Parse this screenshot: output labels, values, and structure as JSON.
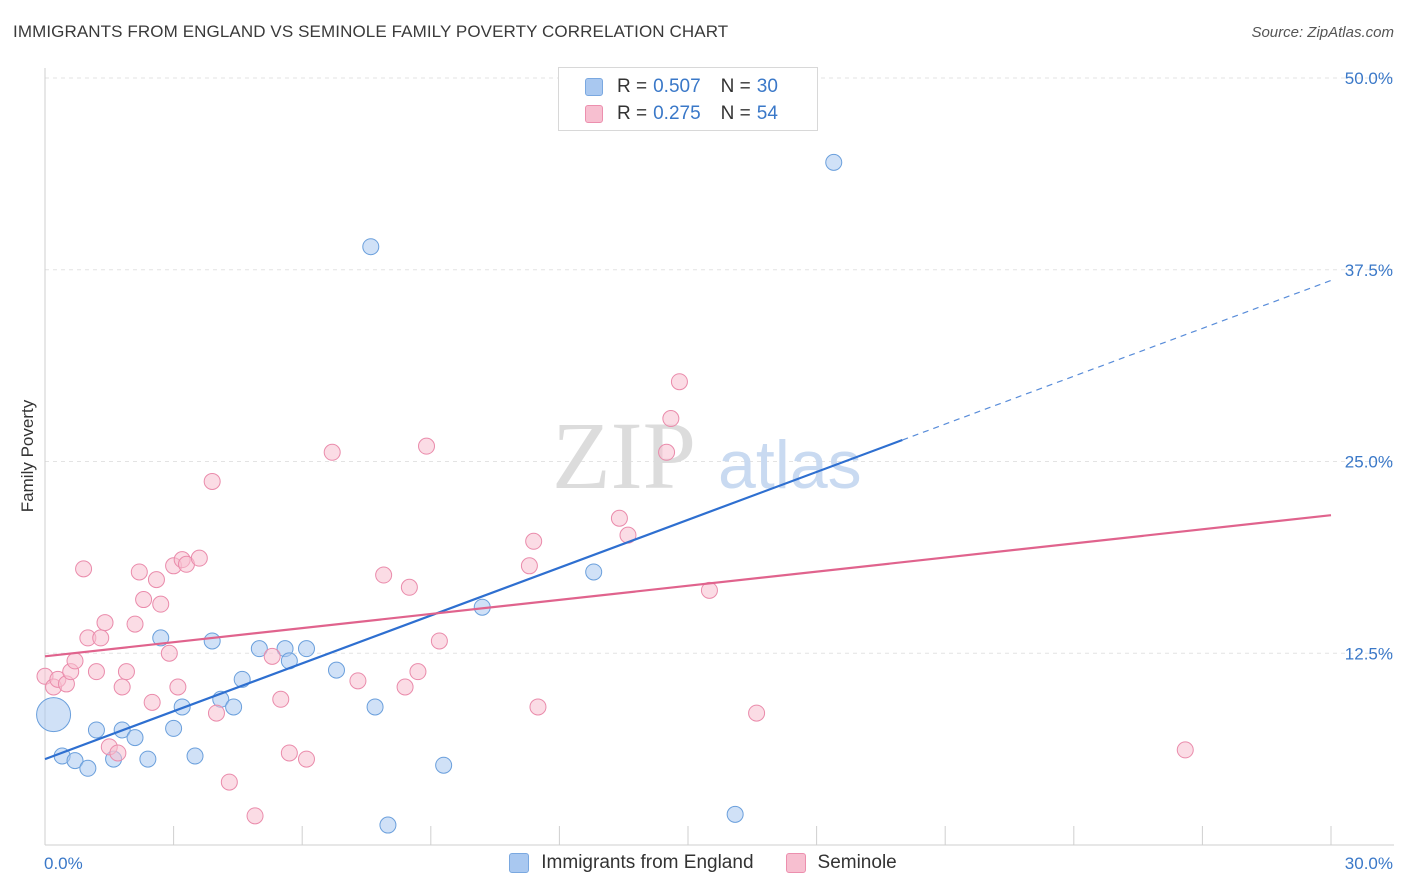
{
  "title": "IMMIGRANTS FROM ENGLAND VS SEMINOLE FAMILY POVERTY CORRELATION CHART",
  "source": "Source: ZipAtlas.com",
  "watermark": {
    "zip": "ZIP",
    "atlas": "atlas"
  },
  "legend": {
    "rows": [
      {
        "r_label": "R =",
        "r_value": "0.507",
        "n_label": "N =",
        "n_value": "30",
        "color": "#a9c8f0",
        "stroke": "#7aa8e0"
      },
      {
        "r_label": "R =",
        "r_value": "0.275",
        "n_label": "N =",
        "n_value": "54",
        "color": "#f7bfd0",
        "stroke": "#ec8fae"
      }
    ]
  },
  "bottom_legend": [
    "Immigrants from England",
    "Seminole"
  ],
  "chart_data": {
    "type": "scatter",
    "title": "IMMIGRANTS FROM ENGLAND VS SEMINOLE FAMILY POVERTY CORRELATION CHART",
    "xlabel": "",
    "ylabel": "Family Poverty",
    "xlim": [
      0,
      30
    ],
    "ylim": [
      0,
      50
    ],
    "x_tick_labels": [
      "0.0%",
      "30.0%"
    ],
    "y_ticks": [
      12.5,
      25.0,
      37.5,
      50.0
    ],
    "y_tick_labels": [
      "12.5%",
      "25.0%",
      "37.5%",
      "50.0%"
    ],
    "grid": true,
    "legend_position": "top-center",
    "series": [
      {
        "name": "Immigrants from England",
        "color": "#a9c8f0",
        "stroke": "#6a9fdc",
        "line_color": "#2e6fd0",
        "points": [
          [
            0.2,
            8.5,
            "large"
          ],
          [
            0.4,
            5.8
          ],
          [
            0.7,
            5.5
          ],
          [
            1.0,
            5.0
          ],
          [
            1.2,
            7.5
          ],
          [
            1.6,
            5.6
          ],
          [
            1.8,
            7.5
          ],
          [
            2.1,
            7.0
          ],
          [
            2.4,
            5.6
          ],
          [
            2.7,
            13.5
          ],
          [
            3.0,
            7.6
          ],
          [
            3.2,
            9.0
          ],
          [
            3.5,
            5.8
          ],
          [
            3.9,
            13.3
          ],
          [
            4.1,
            9.5
          ],
          [
            4.4,
            9.0
          ],
          [
            4.6,
            10.8
          ],
          [
            5.0,
            12.8
          ],
          [
            5.6,
            12.8
          ],
          [
            5.7,
            12.0
          ],
          [
            6.1,
            12.8
          ],
          [
            6.8,
            11.4
          ],
          [
            7.6,
            39.0
          ],
          [
            7.7,
            9.0
          ],
          [
            8.0,
            1.3
          ],
          [
            9.3,
            5.2
          ],
          [
            10.2,
            15.5
          ],
          [
            12.8,
            17.8
          ],
          [
            16.1,
            2.0
          ],
          [
            18.4,
            44.5
          ]
        ],
        "trend": {
          "x_start": 0,
          "y_start": 5.6,
          "x_solid_end": 20.0,
          "y_solid_end": 26.4,
          "x_end": 30,
          "y_end": 36.8
        }
      },
      {
        "name": "Seminole",
        "color": "#f7bfd0",
        "stroke": "#ea8bab",
        "line_color": "#e0638d",
        "points": [
          [
            0.0,
            11.0
          ],
          [
            0.2,
            10.3
          ],
          [
            0.3,
            10.8
          ],
          [
            0.5,
            10.5
          ],
          [
            0.6,
            11.3
          ],
          [
            0.7,
            12.0
          ],
          [
            0.9,
            18.0
          ],
          [
            1.0,
            13.5
          ],
          [
            1.2,
            11.3
          ],
          [
            1.3,
            13.5
          ],
          [
            1.4,
            14.5
          ],
          [
            1.5,
            6.4
          ],
          [
            1.7,
            6.0
          ],
          [
            1.8,
            10.3
          ],
          [
            1.9,
            11.3
          ],
          [
            2.1,
            14.4
          ],
          [
            2.2,
            17.8
          ],
          [
            2.3,
            16.0
          ],
          [
            2.5,
            9.3
          ],
          [
            2.6,
            17.3
          ],
          [
            2.7,
            15.7
          ],
          [
            2.9,
            12.5
          ],
          [
            3.0,
            18.2
          ],
          [
            3.1,
            10.3
          ],
          [
            3.2,
            18.6
          ],
          [
            3.3,
            18.3
          ],
          [
            3.6,
            18.7
          ],
          [
            3.9,
            23.7
          ],
          [
            4.0,
            8.6
          ],
          [
            4.3,
            4.1
          ],
          [
            4.9,
            1.9
          ],
          [
            5.3,
            12.3
          ],
          [
            5.5,
            9.5
          ],
          [
            5.7,
            6.0
          ],
          [
            6.1,
            5.6
          ],
          [
            6.7,
            25.6
          ],
          [
            7.3,
            10.7
          ],
          [
            7.9,
            17.6
          ],
          [
            8.4,
            10.3
          ],
          [
            8.5,
            16.8
          ],
          [
            8.7,
            11.3
          ],
          [
            8.9,
            26.0
          ],
          [
            9.2,
            13.3
          ],
          [
            11.3,
            18.2
          ],
          [
            11.4,
            19.8
          ],
          [
            11.5,
            9.0
          ],
          [
            13.4,
            21.3
          ],
          [
            13.6,
            20.2
          ],
          [
            14.5,
            25.6
          ],
          [
            14.6,
            27.8
          ],
          [
            14.8,
            30.2
          ],
          [
            15.5,
            16.6
          ],
          [
            16.6,
            8.6
          ],
          [
            26.6,
            6.2
          ]
        ],
        "trend": {
          "x_start": 0,
          "y_start": 12.3,
          "x_end": 30,
          "y_end": 21.5
        }
      }
    ]
  }
}
